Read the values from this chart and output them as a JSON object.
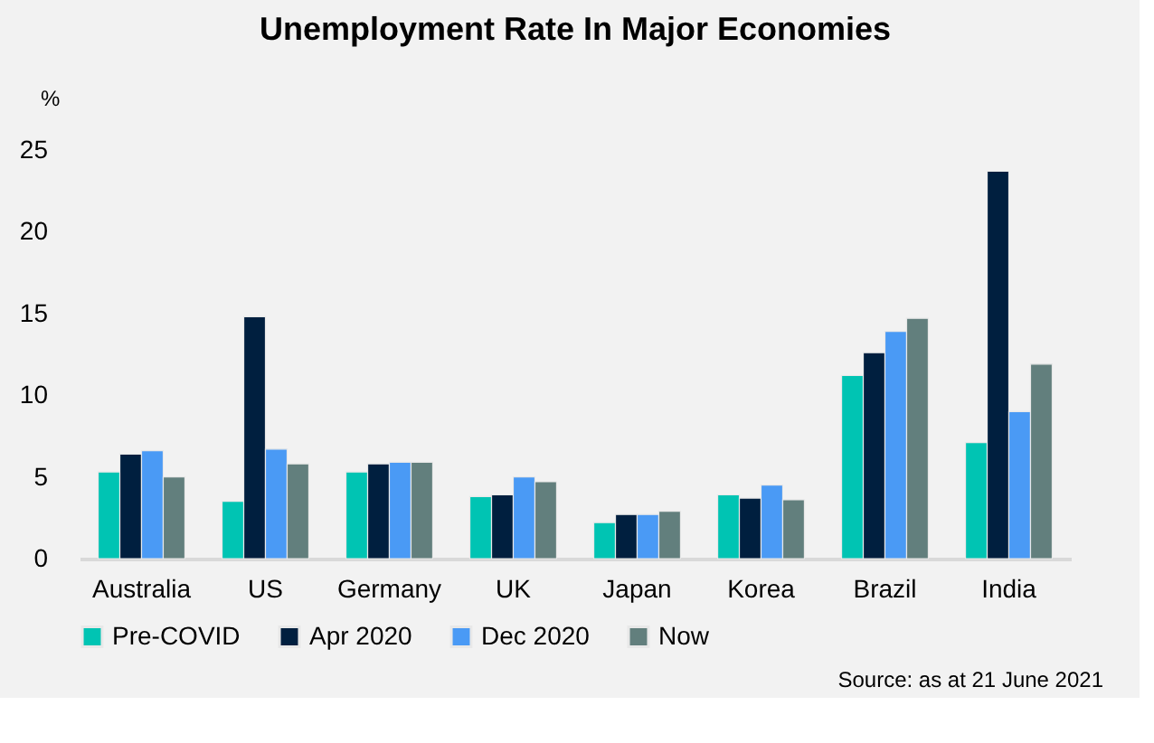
{
  "chart_data": {
    "type": "bar",
    "title": "Unemployment Rate In Major Economies",
    "ylabel": "%",
    "categories": [
      "Australia",
      "US",
      "Germany",
      "UK",
      "Japan",
      "Korea",
      "Brazil",
      "India"
    ],
    "series": [
      {
        "name": "Pre-COVID",
        "color": "#00c4b3",
        "values": [
          5.3,
          3.5,
          5.3,
          3.8,
          2.2,
          3.9,
          11.2,
          7.1
        ]
      },
      {
        "name": "Apr 2020",
        "color": "#001f3f",
        "values": [
          6.4,
          14.8,
          5.8,
          3.9,
          2.7,
          3.7,
          12.6,
          23.7
        ]
      },
      {
        "name": "Dec 2020",
        "color": "#4a9af5",
        "values": [
          6.6,
          6.7,
          5.9,
          5.0,
          2.7,
          4.5,
          13.9,
          9.0
        ]
      },
      {
        "name": "Now",
        "color": "#627f7d",
        "values": [
          5.0,
          5.8,
          5.9,
          4.7,
          2.9,
          3.6,
          14.7,
          11.9
        ]
      }
    ],
    "ylim": [
      0,
      25
    ],
    "yticks": [
      0,
      5,
      10,
      15,
      20,
      25
    ],
    "grid": false,
    "legend": "bottom",
    "annotations": [
      "Source: as at 21 June 2021"
    ]
  }
}
